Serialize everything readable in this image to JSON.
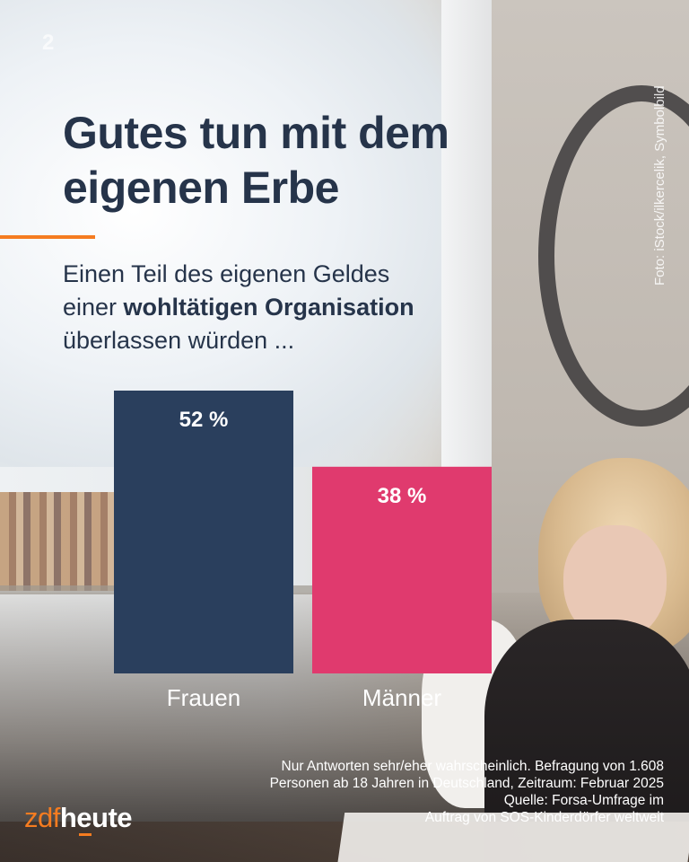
{
  "header": {
    "brand_mark": "2",
    "title_line1": "Gutes tun mit dem",
    "title_line2": "eigenen Erbe",
    "subtitle_line1": "Einen Teil des eigenen Geldes",
    "subtitle_line2_prefix": "einer ",
    "subtitle_line2_bold": "wohltätigen Organisation",
    "subtitle_line3": "überlassen würden ..."
  },
  "photo_credit": "Foto: iStock/ilkercelik, Symbolbild",
  "footnote": {
    "line1": "Nur Antworten sehr/eher wahrscheinlich. Befragung von 1.608",
    "line2": "Personen ab 18 Jahren in Deutschland, Zeitraum: Februar 2025",
    "line3": "Quelle: Forsa-Umfrage im",
    "line4": "Auftrag von SOS-Kinderdörfer weltweit"
  },
  "logo": {
    "part1": "zdf",
    "part2": "heute"
  },
  "colors": {
    "navy": "#2a3f5d",
    "pink": "#e03a6e",
    "orange": "#f57c20",
    "text_dark": "#26344a"
  },
  "chart_data": {
    "type": "bar",
    "categories": [
      "Frauen",
      "Männer"
    ],
    "values": [
      52,
      38
    ],
    "value_labels": [
      "52 %",
      "38 %"
    ],
    "colors": [
      "#2a3f5d",
      "#e03a6e"
    ],
    "ylim": [
      0,
      52
    ],
    "grid": false
  }
}
